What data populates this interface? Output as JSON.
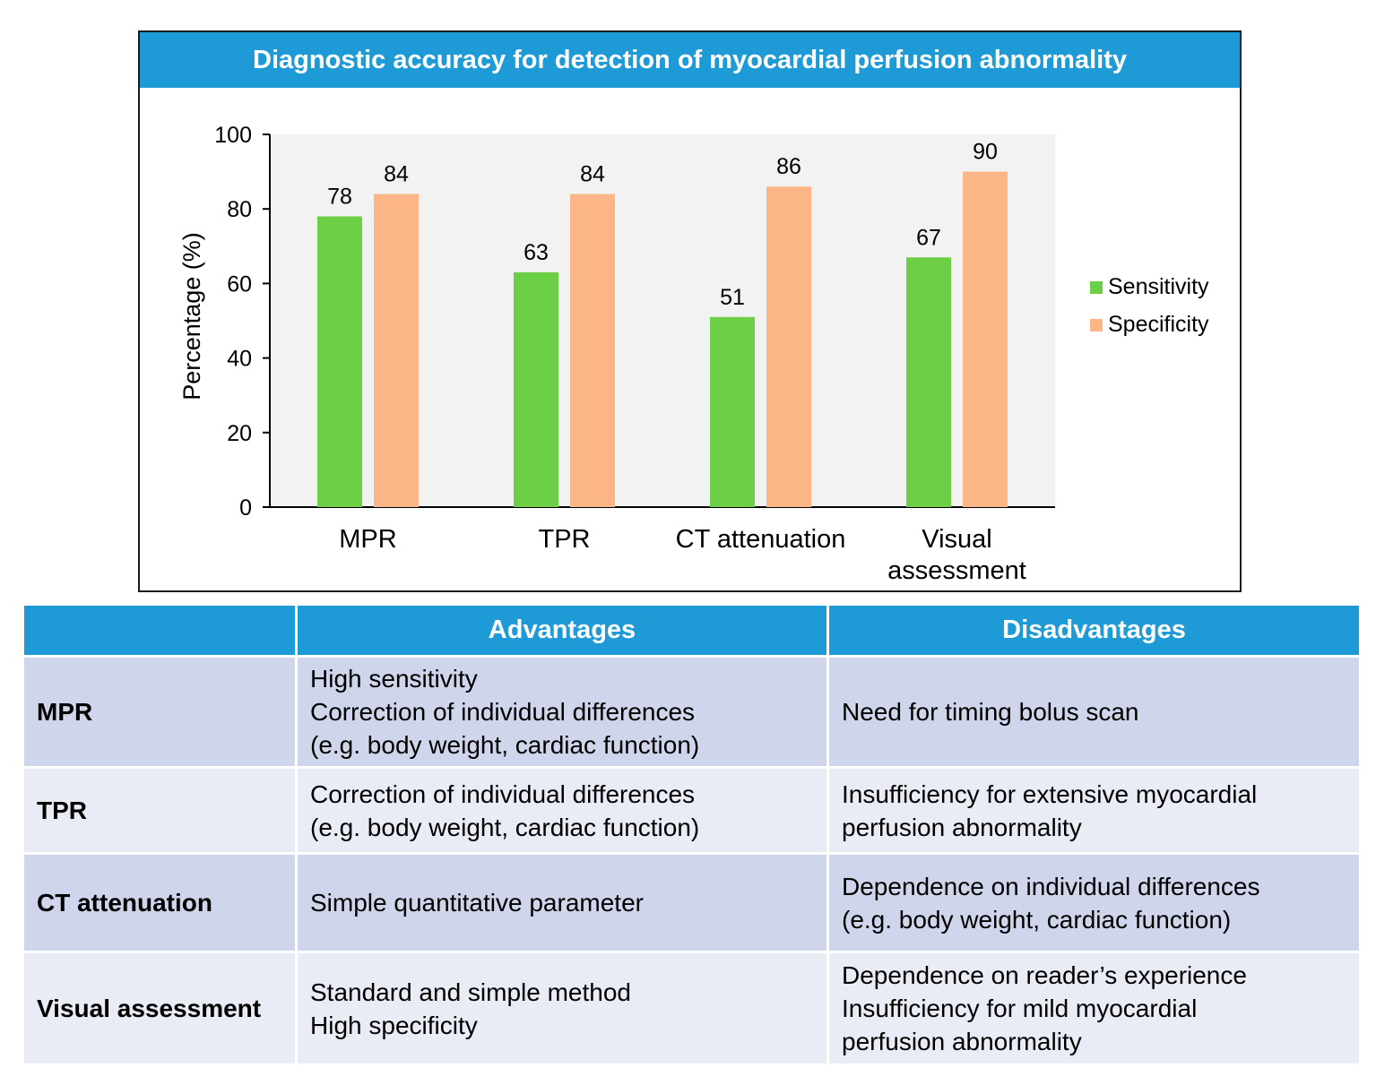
{
  "chart_data": {
    "type": "bar",
    "title": "Diagnostic accuracy for detection of myocardial perfusion abnormality",
    "categories": [
      "MPR",
      "TPR",
      "CT attenuation",
      "Visual\nassessment"
    ],
    "series": [
      {
        "name": "Sensitivity",
        "color": "#6ccf46",
        "values": [
          78,
          63,
          51,
          67
        ]
      },
      {
        "name": "Specificity",
        "color": "#fbb586",
        "values": [
          84,
          84,
          86,
          90
        ]
      }
    ],
    "ylabel": "Percentage (%)",
    "xlabel": "",
    "ylim": [
      0,
      100
    ],
    "yticks": [
      0,
      20,
      40,
      60,
      80,
      100
    ],
    "legend": "right",
    "grid": false
  },
  "table": {
    "headers": [
      "",
      "Advantages",
      "Disadvantages"
    ],
    "rows": [
      {
        "method": "MPR",
        "advantages": [
          "High sensitivity",
          "Correction of individual differences",
          "(e.g. body weight, cardiac function)"
        ],
        "disadvantages": [
          "Need for timing bolus scan"
        ]
      },
      {
        "method": "TPR",
        "advantages": [
          "Correction of individual differences",
          "(e.g. body weight, cardiac function)"
        ],
        "disadvantages": [
          "Insufficiency for extensive myocardial",
          "perfusion abnormality"
        ]
      },
      {
        "method": "CT attenuation",
        "advantages": [
          "Simple quantitative parameter"
        ],
        "disadvantages": [
          "Dependence on individual differences",
          "(e.g. body weight, cardiac function)"
        ]
      },
      {
        "method": "Visual assessment",
        "advantages": [
          "Standard and simple method",
          "High specificity"
        ],
        "disadvantages": [
          "Dependence on reader’s experience",
          "Insufficiency for mild myocardial",
          "perfusion abnormality"
        ]
      }
    ]
  }
}
